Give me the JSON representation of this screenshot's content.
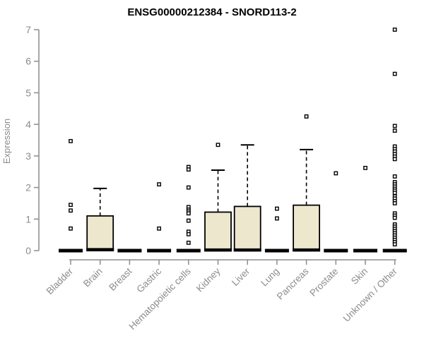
{
  "chart_data": {
    "type": "boxplot",
    "title": "ENSG00000212384 - SNORD113-2",
    "ylabel": "Expression",
    "xlabel": "",
    "ylim": [
      0,
      7
    ],
    "yticks": [
      0,
      1,
      2,
      3,
      4,
      5,
      6,
      7
    ],
    "grid": false,
    "legend": false,
    "categories": [
      "Bladder",
      "Brain",
      "Breast",
      "Gastric",
      "Hematopoietic cells",
      "Kidney",
      "Liver",
      "Lung",
      "Pancreas",
      "Prostate",
      "Skin",
      "Unknown / Other"
    ],
    "boxes": [
      {
        "category": "Bladder",
        "q1": 0,
        "median": 0,
        "q3": 0,
        "whisker_low": 0,
        "whisker_high": 0,
        "outliers": [
          3.47,
          1.45,
          1.27,
          0.7
        ]
      },
      {
        "category": "Brain",
        "q1": 0,
        "median": 0.03,
        "q3": 1.1,
        "whisker_low": 0,
        "whisker_high": 1.97,
        "outliers": []
      },
      {
        "category": "Breast",
        "q1": 0,
        "median": 0,
        "q3": 0,
        "whisker_low": 0,
        "whisker_high": 0,
        "outliers": []
      },
      {
        "category": "Gastric",
        "q1": 0,
        "median": 0,
        "q3": 0,
        "whisker_low": 0,
        "whisker_high": 0,
        "outliers": [
          2.1,
          0.7
        ]
      },
      {
        "category": "Hematopoietic cells",
        "q1": 0,
        "median": 0,
        "q3": 0,
        "whisker_low": 0,
        "whisker_high": 0,
        "outliers": [
          2.65,
          2.57,
          2.0,
          1.38,
          1.3,
          1.24,
          1.18,
          0.95,
          0.6,
          0.52,
          0.25
        ]
      },
      {
        "category": "Kidney",
        "q1": 0,
        "median": 0.02,
        "q3": 1.22,
        "whisker_low": 0,
        "whisker_high": 2.55,
        "outliers": [
          3.35
        ]
      },
      {
        "category": "Liver",
        "q1": 0,
        "median": 0.02,
        "q3": 1.4,
        "whisker_low": 0,
        "whisker_high": 3.35,
        "outliers": []
      },
      {
        "category": "Lung",
        "q1": 0,
        "median": 0,
        "q3": 0,
        "whisker_low": 0,
        "whisker_high": 0,
        "outliers": [
          1.33,
          1.02
        ]
      },
      {
        "category": "Pancreas",
        "q1": 0,
        "median": 0.02,
        "q3": 1.44,
        "whisker_low": 0,
        "whisker_high": 3.2,
        "outliers": [
          4.25
        ]
      },
      {
        "category": "Prostate",
        "q1": 0,
        "median": 0,
        "q3": 0,
        "whisker_low": 0,
        "whisker_high": 0,
        "outliers": [
          2.45
        ]
      },
      {
        "category": "Skin",
        "q1": 0,
        "median": 0,
        "q3": 0,
        "whisker_low": 0,
        "whisker_high": 0,
        "outliers": [
          2.62
        ]
      },
      {
        "category": "Unknown / Other",
        "q1": 0,
        "median": 0,
        "q3": 0,
        "whisker_low": 0,
        "whisker_high": 0,
        "outliers": [
          7.0,
          5.6,
          3.95,
          3.8,
          3.3,
          3.22,
          3.14,
          3.06,
          2.98,
          2.9,
          2.35,
          2.17,
          2.1,
          2.03,
          1.96,
          1.9,
          1.83,
          1.72,
          1.65,
          1.57,
          1.5,
          1.18,
          1.11,
          1.04,
          0.83,
          0.76,
          0.69,
          0.62,
          0.55,
          0.48,
          0.41,
          0.34,
          0.27,
          0.2
        ]
      }
    ],
    "colors": {
      "box_fill": "#EDE7CE",
      "box_stroke": "#000000",
      "median_color": "#000000",
      "outlier_stroke": "#000000",
      "outlier_fill": "#ffffff",
      "axis_color": "#8c8c8c",
      "tick_label_color": "#8c8c8c",
      "title_color": "#000000"
    }
  }
}
